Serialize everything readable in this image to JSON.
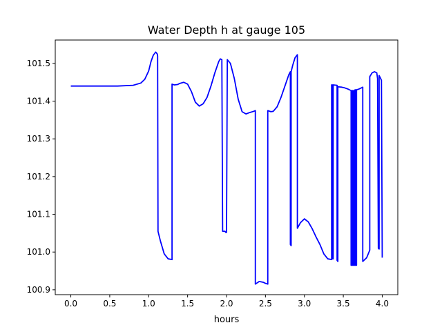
{
  "chart_data": {
    "type": "line",
    "title": "Water Depth h at gauge 105",
    "xlabel": "hours",
    "ylabel": "",
    "xlim": [
      -0.2,
      4.2
    ],
    "ylim": [
      100.887,
      101.562
    ],
    "x_ticks": [
      {
        "value": 0.0,
        "label": "0.0"
      },
      {
        "value": 0.5,
        "label": "0.5"
      },
      {
        "value": 1.0,
        "label": "1.0"
      },
      {
        "value": 1.5,
        "label": "1.5"
      },
      {
        "value": 2.0,
        "label": "2.0"
      },
      {
        "value": 2.5,
        "label": "2.5"
      },
      {
        "value": 3.0,
        "label": "3.0"
      },
      {
        "value": 3.5,
        "label": "3.5"
      },
      {
        "value": 4.0,
        "label": "4.0"
      }
    ],
    "y_ticks": [
      {
        "value": 100.9,
        "label": "100.9"
      },
      {
        "value": 101.0,
        "label": "101.0"
      },
      {
        "value": 101.1,
        "label": "101.1"
      },
      {
        "value": 101.2,
        "label": "101.2"
      },
      {
        "value": 101.3,
        "label": "101.3"
      },
      {
        "value": 101.4,
        "label": "101.4"
      },
      {
        "value": 101.5,
        "label": "101.5"
      }
    ],
    "grid": false,
    "legend": "none",
    "series": [
      {
        "color": "#0000ff",
        "points": [
          [
            0.0,
            101.44
          ],
          [
            0.3,
            101.44
          ],
          [
            0.6,
            101.44
          ],
          [
            0.8,
            101.442
          ],
          [
            0.9,
            101.448
          ],
          [
            0.95,
            101.458
          ],
          [
            1.0,
            101.48
          ],
          [
            1.03,
            101.505
          ],
          [
            1.06,
            101.522
          ],
          [
            1.09,
            101.53
          ],
          [
            1.11,
            101.525
          ],
          [
            1.115,
            101.52
          ],
          [
            1.12,
            101.055
          ],
          [
            1.15,
            101.03
          ],
          [
            1.2,
            100.995
          ],
          [
            1.25,
            100.982
          ],
          [
            1.3,
            100.98
          ],
          [
            1.3,
            101.445
          ],
          [
            1.33,
            101.443
          ],
          [
            1.37,
            101.444
          ],
          [
            1.4,
            101.447
          ],
          [
            1.45,
            101.45
          ],
          [
            1.5,
            101.445
          ],
          [
            1.55,
            101.425
          ],
          [
            1.6,
            101.397
          ],
          [
            1.65,
            101.387
          ],
          [
            1.7,
            101.393
          ],
          [
            1.75,
            101.41
          ],
          [
            1.8,
            101.44
          ],
          [
            1.85,
            101.475
          ],
          [
            1.9,
            101.505
          ],
          [
            1.92,
            101.512
          ],
          [
            1.94,
            101.51
          ],
          [
            1.95,
            101.055
          ],
          [
            1.98,
            101.055
          ],
          [
            1.99,
            101.052
          ],
          [
            2.0,
            101.052
          ],
          [
            2.01,
            101.51
          ],
          [
            2.05,
            101.5
          ],
          [
            2.1,
            101.46
          ],
          [
            2.15,
            101.405
          ],
          [
            2.2,
            101.372
          ],
          [
            2.25,
            101.366
          ],
          [
            2.3,
            101.37
          ],
          [
            2.35,
            101.373
          ],
          [
            2.37,
            101.375
          ],
          [
            2.37,
            100.915
          ],
          [
            2.42,
            100.922
          ],
          [
            2.47,
            100.92
          ],
          [
            2.5,
            100.917
          ],
          [
            2.53,
            100.915
          ],
          [
            2.53,
            101.375
          ],
          [
            2.57,
            101.372
          ],
          [
            2.6,
            101.373
          ],
          [
            2.65,
            101.385
          ],
          [
            2.7,
            101.41
          ],
          [
            2.75,
            101.44
          ],
          [
            2.8,
            101.47
          ],
          [
            2.82,
            101.478
          ],
          [
            2.82,
            101.02
          ],
          [
            2.83,
            101.017
          ],
          [
            2.83,
            101.478
          ],
          [
            2.85,
            101.495
          ],
          [
            2.88,
            101.515
          ],
          [
            2.91,
            101.523
          ],
          [
            2.91,
            101.063
          ],
          [
            2.95,
            101.078
          ],
          [
            3.0,
            101.088
          ],
          [
            3.05,
            101.08
          ],
          [
            3.1,
            101.062
          ],
          [
            3.15,
            101.04
          ],
          [
            3.2,
            101.02
          ],
          [
            3.25,
            100.995
          ],
          [
            3.3,
            100.982
          ],
          [
            3.35,
            100.98
          ],
          [
            3.35,
            101.443
          ],
          [
            3.36,
            101.443
          ],
          [
            3.36,
            100.982
          ],
          [
            3.37,
            100.982
          ],
          [
            3.37,
            101.443
          ],
          [
            3.42,
            101.442
          ],
          [
            3.42,
            100.978
          ],
          [
            3.43,
            100.975
          ],
          [
            3.43,
            101.438
          ],
          [
            3.48,
            101.437
          ],
          [
            3.52,
            101.435
          ],
          [
            3.56,
            101.432
          ],
          [
            3.6,
            101.428
          ],
          [
            3.6,
            100.965
          ],
          [
            3.61,
            100.965
          ],
          [
            3.61,
            101.428
          ],
          [
            3.62,
            101.428
          ],
          [
            3.62,
            100.965
          ],
          [
            3.63,
            100.965
          ],
          [
            3.63,
            101.428
          ],
          [
            3.64,
            101.428
          ],
          [
            3.64,
            100.965
          ],
          [
            3.65,
            100.965
          ],
          [
            3.65,
            101.43
          ],
          [
            3.66,
            101.43
          ],
          [
            3.66,
            100.965
          ],
          [
            3.67,
            100.965
          ],
          [
            3.67,
            101.43
          ],
          [
            3.7,
            101.432
          ],
          [
            3.74,
            101.436
          ],
          [
            3.75,
            101.437
          ],
          [
            3.75,
            100.975
          ],
          [
            3.8,
            100.985
          ],
          [
            3.84,
            101.005
          ],
          [
            3.84,
            101.465
          ],
          [
            3.87,
            101.475
          ],
          [
            3.9,
            101.478
          ],
          [
            3.93,
            101.475
          ],
          [
            3.94,
            101.46
          ],
          [
            3.95,
            101.01
          ],
          [
            3.96,
            101.008
          ],
          [
            3.96,
            101.468
          ],
          [
            3.98,
            101.46
          ],
          [
            3.99,
            101.455
          ],
          [
            4.0,
            100.99
          ],
          [
            4.0,
            100.985
          ]
        ]
      }
    ]
  }
}
